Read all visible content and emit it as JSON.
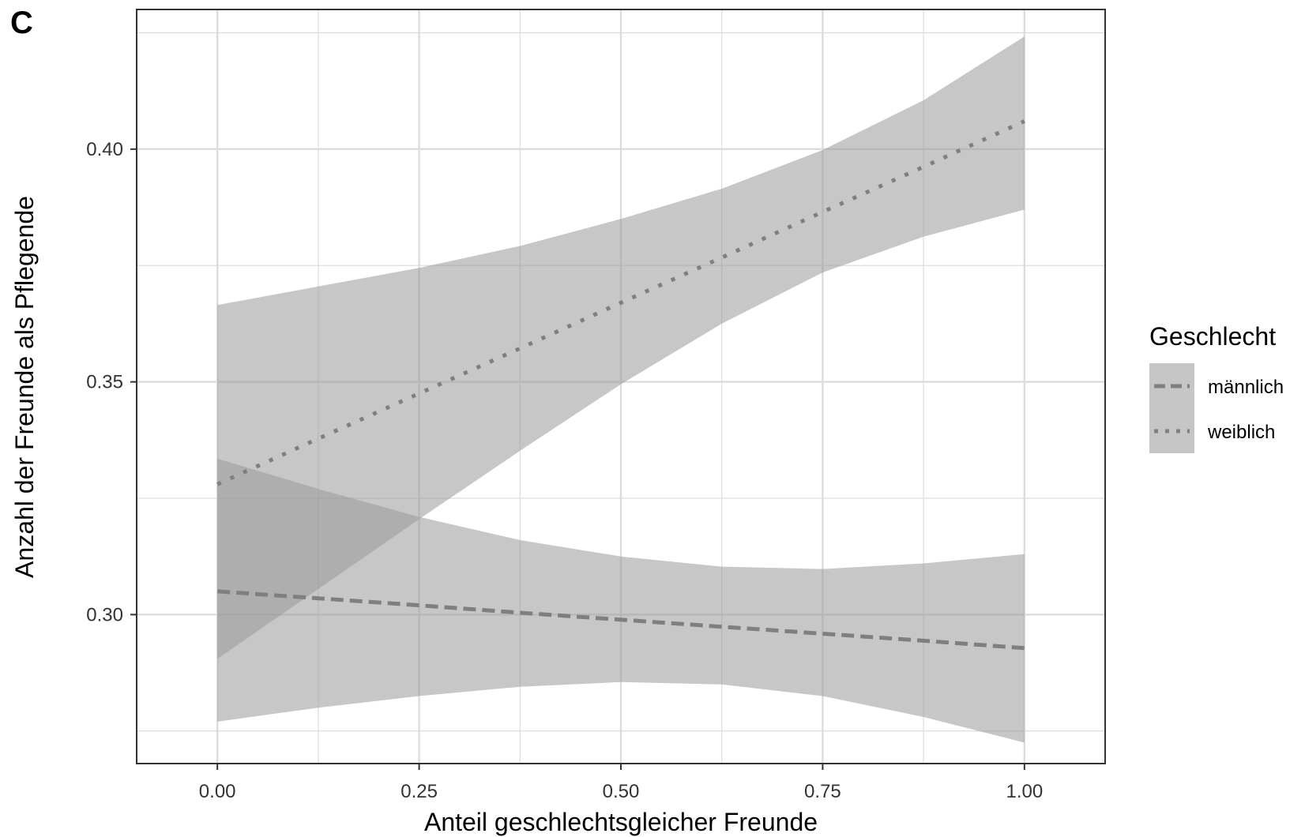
{
  "chart_data": {
    "type": "line",
    "panel_label": "C",
    "xlabel": "Anteil geschlechtsgleicher Freunde",
    "ylabel": "Anzahl der Freunde als Pflegende",
    "xlim": [
      -0.1,
      1.1
    ],
    "ylim": [
      0.268,
      0.43
    ],
    "xticks": [
      0.0,
      0.25,
      0.5,
      0.75,
      1.0
    ],
    "xtick_labels": [
      "0.00",
      "0.25",
      "0.50",
      "0.75",
      "1.00"
    ],
    "yticks": [
      0.3,
      0.35,
      0.4
    ],
    "ytick_labels": [
      "0.30",
      "0.35",
      "0.40"
    ],
    "grid": true,
    "legend": {
      "title": "Geschlecht",
      "placement": "right",
      "entries": [
        {
          "label": "männlich",
          "linetype": "dashed"
        },
        {
          "label": "weiblich",
          "linetype": "dotted"
        }
      ]
    },
    "series": [
      {
        "name": "männlich",
        "linetype": "dashed",
        "x": [
          0.0,
          0.125,
          0.25,
          0.375,
          0.5,
          0.625,
          0.75,
          0.875,
          1.0
        ],
        "y": [
          0.305,
          0.3035,
          0.302,
          0.3004,
          0.2989,
          0.2974,
          0.2959,
          0.2944,
          0.2928
        ],
        "lower": [
          0.277,
          0.28,
          0.2825,
          0.2845,
          0.2855,
          0.285,
          0.2825,
          0.278,
          0.2725
        ],
        "upper": [
          0.3335,
          0.327,
          0.321,
          0.316,
          0.3125,
          0.3103,
          0.3098,
          0.311,
          0.313
        ]
      },
      {
        "name": "weiblich",
        "linetype": "dotted",
        "x": [
          0.0,
          0.125,
          0.25,
          0.375,
          0.5,
          0.625,
          0.75,
          0.875,
          1.0
        ],
        "y": [
          0.328,
          0.3378,
          0.3475,
          0.3572,
          0.367,
          0.3767,
          0.3865,
          0.3962,
          0.406
        ],
        "lower": [
          0.2905,
          0.3055,
          0.3205,
          0.3352,
          0.3495,
          0.3625,
          0.3735,
          0.3812,
          0.387
        ],
        "upper": [
          0.3665,
          0.3705,
          0.3745,
          0.3792,
          0.385,
          0.3915,
          0.3998,
          0.4105,
          0.4242
        ]
      }
    ],
    "colors": {
      "ribbon": "#999999",
      "line": "#7f7f7f",
      "grid": "#dcdcdc",
      "panel_border": "#333333",
      "legend_key_bg": "#c6c6c6"
    }
  }
}
